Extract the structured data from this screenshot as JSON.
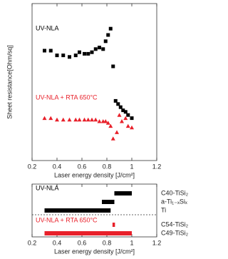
{
  "chart_data": [
    {
      "type": "scatter",
      "y_label": "Sheet resistance[Ohm/sq]",
      "x_label": "Laser energy density [J/cm²]",
      "xlim": [
        0.2,
        1.2
      ],
      "xticks": [
        0.2,
        0.4,
        0.6,
        0.8,
        1,
        1.2
      ],
      "ylim": [
        0,
        100
      ],
      "series": [
        {
          "name": "UV-NLA",
          "color": "#000000",
          "marker": "square",
          "x": [
            0.3,
            0.35,
            0.4,
            0.45,
            0.5,
            0.55,
            0.58,
            0.62,
            0.65,
            0.68,
            0.71,
            0.74,
            0.77,
            0.79,
            0.81,
            0.83,
            0.85,
            0.87,
            0.89,
            0.91,
            0.93,
            0.95,
            0.97,
            1.0
          ],
          "values": [
            70,
            70,
            67,
            67,
            66,
            67,
            69,
            68,
            68,
            69,
            71,
            72,
            71,
            76,
            80,
            84,
            60,
            38,
            36,
            34,
            32,
            31,
            29,
            27
          ]
        },
        {
          "name": "UV-NLA + RTA 650°C",
          "color": "#e8202a",
          "marker": "triangle",
          "x": [
            0.3,
            0.35,
            0.4,
            0.45,
            0.5,
            0.55,
            0.58,
            0.62,
            0.65,
            0.68,
            0.71,
            0.74,
            0.77,
            0.79,
            0.81,
            0.83,
            0.85,
            0.88,
            0.9,
            0.92,
            0.95,
            0.97,
            1.0
          ],
          "values": [
            27,
            27,
            26,
            26,
            26,
            26,
            26,
            26,
            26,
            26,
            26,
            25,
            25,
            25,
            24,
            22,
            14,
            18,
            29,
            25,
            27,
            22,
            21
          ]
        }
      ]
    },
    {
      "type": "range",
      "x_label": "Laser energy density [J/cm²]",
      "xlim": [
        0.2,
        1.2
      ],
      "xticks": [
        0.2,
        0.4,
        0.6,
        0.8,
        1,
        1.2
      ],
      "series": [
        {
          "name": "UV-NLA",
          "color": "#000000",
          "categories": [
            "C40-TiSi₂",
            "a-Ti₁₋ₓSiₓ",
            "Ti"
          ],
          "start": [
            0.86,
            0.76,
            0.3
          ],
          "end": [
            1.0,
            0.86,
            0.83
          ]
        },
        {
          "name": "UV-NLA + RTA 650°C",
          "color": "#e8202a",
          "categories": [
            "C54-TiSi₂",
            "C49-TiSi₂"
          ],
          "start": [
            0.845,
            0.3
          ],
          "end": [
            0.865,
            1.0
          ]
        }
      ]
    }
  ]
}
